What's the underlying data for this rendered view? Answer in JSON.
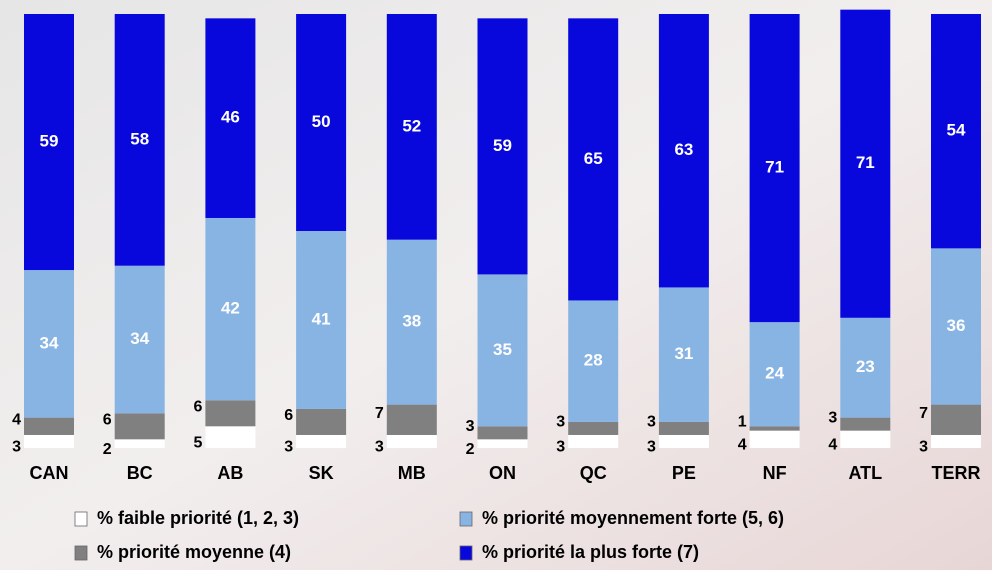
{
  "chart_data": {
    "type": "stacked-bar",
    "categories": [
      "CAN",
      "BC",
      "AB",
      "SK",
      "MB",
      "ON",
      "QC",
      "PE",
      "NF",
      "ATL",
      "TERR"
    ],
    "series": [
      {
        "name": "% faible priorité (1, 2, 3)",
        "color": "#ffffff",
        "values": [
          3,
          2,
          5,
          3,
          3,
          2,
          3,
          3,
          4,
          4,
          3
        ]
      },
      {
        "name": "% priorité moyenne (4)",
        "color": "#808080",
        "values": [
          4,
          6,
          6,
          6,
          7,
          3,
          3,
          3,
          1,
          3,
          7
        ]
      },
      {
        "name": "% priorité moyennement forte (5, 6)",
        "color": "#88b4e4",
        "values": [
          34,
          34,
          42,
          41,
          38,
          35,
          28,
          31,
          24,
          23,
          36
        ]
      },
      {
        "name": "% priorité la plus forte  (7)",
        "color": "#0808dc",
        "values": [
          59,
          58,
          46,
          50,
          52,
          59,
          65,
          63,
          71,
          71,
          54
        ]
      }
    ],
    "ylim": [
      0,
      100
    ]
  }
}
